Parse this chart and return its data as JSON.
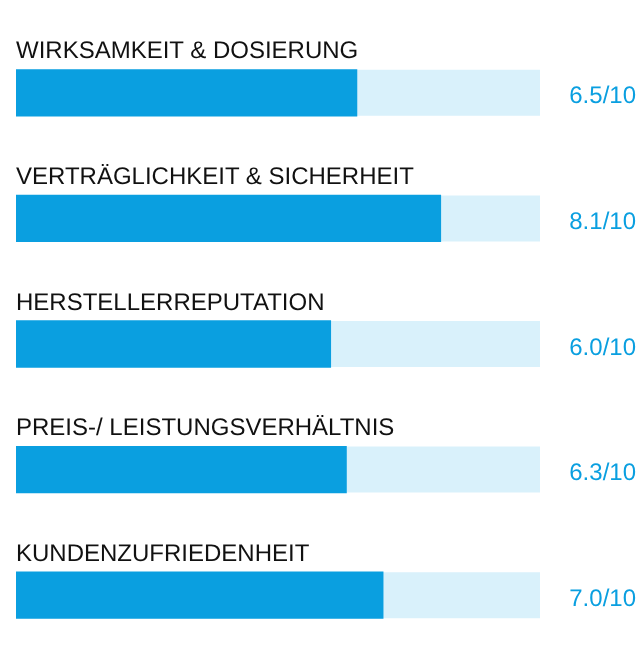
{
  "chart_data": {
    "type": "bar",
    "orientation": "horizontal",
    "categories": [
      "WIRKSAMKEIT & DOSIERUNG",
      "VERTRÄGLICHKEIT & SICHERHEIT",
      "HERSTELLERREPUTATION",
      "PREIS-/ LEISTUNGSVERHÄLTNIS",
      "KUNDENZUFRIEDENHEIT"
    ],
    "values": [
      6.5,
      8.1,
      6.0,
      6.3,
      7.0
    ],
    "value_labels": [
      "6.5",
      "8.1",
      "6.0",
      "6.3",
      "7.0"
    ],
    "annotations": [
      "/10",
      "/10",
      "/10",
      "/10",
      "/10"
    ],
    "color": "#0a9fe0",
    "xlim": [
      0,
      10
    ],
    "tick_labels": false,
    "legend": false
  }
}
